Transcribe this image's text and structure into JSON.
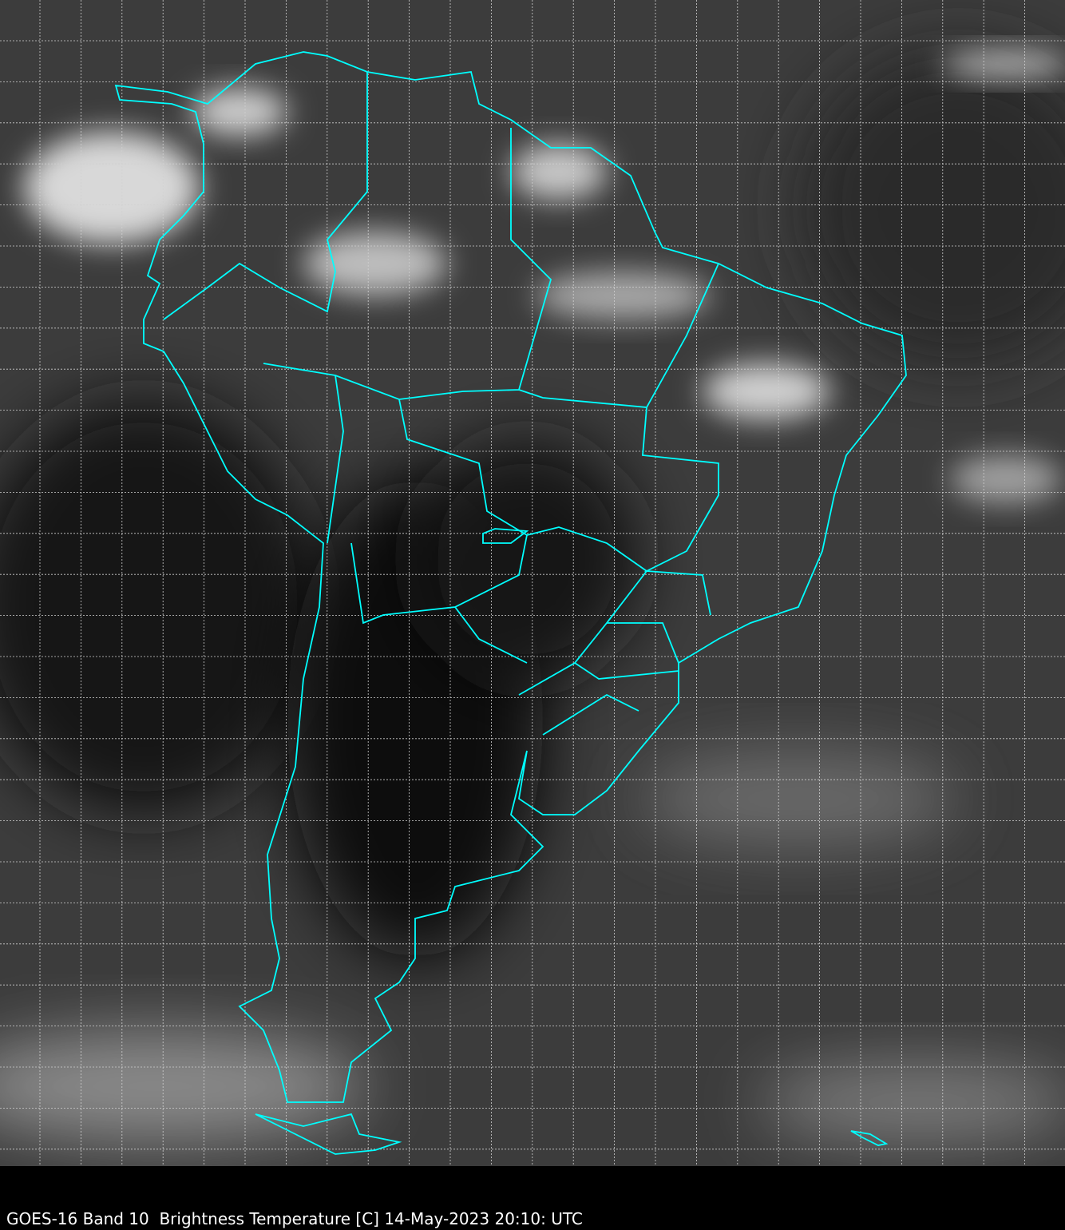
{
  "caption": "GOES-16 Band 10  Brightness Temperature [C] 14-May-2023 20:10: UTC",
  "map": {
    "satellite": "GOES-16",
    "band": "Band 10",
    "variable": "Brightness Temperature [C]",
    "date": "14-May-2023",
    "time": "20:10: UTC",
    "region": "South America",
    "colors": {
      "borders": "#00ffff",
      "gridlines": "#d0d0d0",
      "background": "#000000"
    },
    "grid": true
  }
}
